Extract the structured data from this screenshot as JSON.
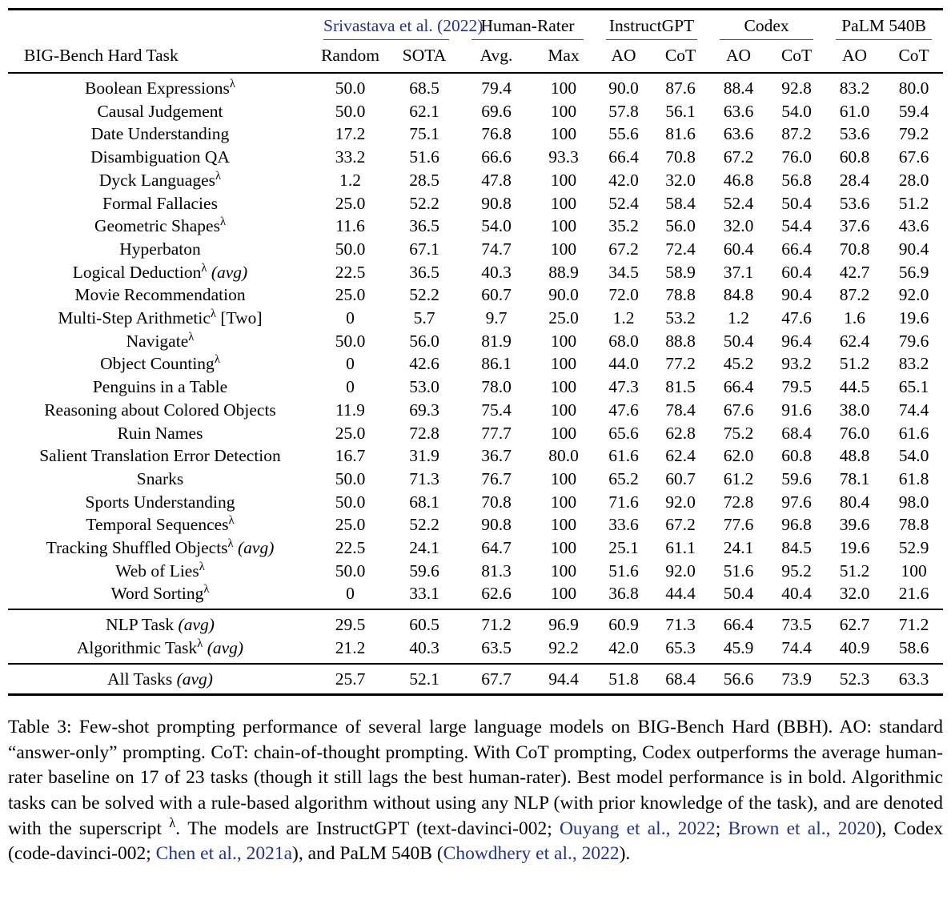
{
  "colors": {
    "link_blue": "#22338c",
    "rule_black": "#000000",
    "cmidrule_gray": "#555555"
  },
  "lambda_symbol": "λ",
  "table": {
    "groups": [
      {
        "label": "Srivastava et al. (2022)",
        "span": 2,
        "link": true
      },
      {
        "label": "Human-Rater",
        "span": 2,
        "link": false
      },
      {
        "label": "InstructGPT",
        "span": 2,
        "link": false
      },
      {
        "label": "Codex",
        "span": 2,
        "link": false
      },
      {
        "label": "PaLM 540B",
        "span": 2,
        "link": false
      }
    ],
    "columns": [
      "BIG-Bench Hard Task",
      "Random",
      "SOTA",
      "Avg.",
      "Max",
      "AO",
      "CoT",
      "AO",
      "CoT",
      "AO",
      "CoT"
    ],
    "rows": [
      {
        "name": "Boolean Expressions",
        "sup": true,
        "note": "",
        "italic": false,
        "values": [
          "50.0",
          "68.5",
          "79.4",
          "100",
          "90.0",
          "87.6",
          "88.4",
          "92.8",
          "83.2",
          "80.0"
        ],
        "bold": 7
      },
      {
        "name": "Causal Judgement",
        "sup": false,
        "note": "",
        "italic": false,
        "values": [
          "50.0",
          "62.1",
          "69.6",
          "100",
          "57.8",
          "56.1",
          "63.6",
          "54.0",
          "61.0",
          "59.4"
        ],
        "bold": 6
      },
      {
        "name": "Date Understanding",
        "sup": false,
        "note": "",
        "italic": false,
        "values": [
          "17.2",
          "75.1",
          "76.8",
          "100",
          "55.6",
          "81.6",
          "63.6",
          "87.2",
          "53.6",
          "79.2"
        ],
        "bold": 7
      },
      {
        "name": "Disambiguation QA",
        "sup": false,
        "note": "",
        "italic": false,
        "values": [
          "33.2",
          "51.6",
          "66.6",
          "93.3",
          "66.4",
          "70.8",
          "67.2",
          "76.0",
          "60.8",
          "67.6"
        ],
        "bold": 7
      },
      {
        "name": "Dyck Languages",
        "sup": true,
        "note": "",
        "italic": false,
        "values": [
          "1.2",
          "28.5",
          "47.8",
          "100",
          "42.0",
          "32.0",
          "46.8",
          "56.8",
          "28.4",
          "28.0"
        ],
        "bold": 7
      },
      {
        "name": "Formal Fallacies",
        "sup": false,
        "note": "",
        "italic": false,
        "values": [
          "25.0",
          "52.2",
          "90.8",
          "100",
          "52.4",
          "58.4",
          "52.4",
          "50.4",
          "53.6",
          "51.2"
        ],
        "bold": 5
      },
      {
        "name": "Geometric Shapes",
        "sup": true,
        "note": "",
        "italic": false,
        "values": [
          "11.6",
          "36.5",
          "54.0",
          "100",
          "35.2",
          "56.0",
          "32.0",
          "54.4",
          "37.6",
          "43.6"
        ],
        "bold": 5
      },
      {
        "name": "Hyperbaton",
        "sup": false,
        "note": "",
        "italic": false,
        "values": [
          "50.0",
          "67.1",
          "74.7",
          "100",
          "67.2",
          "72.4",
          "60.4",
          "66.4",
          "70.8",
          "90.4"
        ],
        "bold": 9
      },
      {
        "name": "Logical Deduction",
        "sup": true,
        "note": "(avg)",
        "italic": true,
        "values": [
          "22.5",
          "36.5",
          "40.3",
          "88.9",
          "34.5",
          "58.9",
          "37.1",
          "60.4",
          "42.7",
          "56.9"
        ],
        "bold": 7
      },
      {
        "name": "Movie Recommendation",
        "sup": false,
        "note": "",
        "italic": false,
        "values": [
          "25.0",
          "52.2",
          "60.7",
          "90.0",
          "72.0",
          "78.8",
          "84.8",
          "90.4",
          "87.2",
          "92.0"
        ],
        "bold": 9
      },
      {
        "name": "Multi-Step Arithmetic",
        "sup": true,
        "note": "[Two]",
        "italic": false,
        "values": [
          "0",
          "5.7",
          "9.7",
          "25.0",
          "1.2",
          "53.2",
          "1.2",
          "47.6",
          "1.6",
          "19.6"
        ],
        "bold": 5
      },
      {
        "name": "Navigate",
        "sup": true,
        "note": "",
        "italic": false,
        "values": [
          "50.0",
          "56.0",
          "81.9",
          "100",
          "68.0",
          "88.8",
          "50.4",
          "96.4",
          "62.4",
          "79.6"
        ],
        "bold": 7
      },
      {
        "name": "Object Counting",
        "sup": true,
        "note": "",
        "italic": false,
        "values": [
          "0",
          "42.6",
          "86.1",
          "100",
          "44.0",
          "77.2",
          "45.2",
          "93.2",
          "51.2",
          "83.2"
        ],
        "bold": 7
      },
      {
        "name": "Penguins in a Table",
        "sup": false,
        "note": "",
        "italic": false,
        "values": [
          "0",
          "53.0",
          "78.0",
          "100",
          "47.3",
          "81.5",
          "66.4",
          "79.5",
          "44.5",
          "65.1"
        ],
        "bold": 5
      },
      {
        "name": "Reasoning about Colored Objects",
        "sup": false,
        "note": "",
        "italic": false,
        "values": [
          "11.9",
          "69.3",
          "75.4",
          "100",
          "47.6",
          "78.4",
          "67.6",
          "91.6",
          "38.0",
          "74.4"
        ],
        "bold": 7
      },
      {
        "name": "Ruin Names",
        "sup": false,
        "note": "",
        "italic": false,
        "values": [
          "25.0",
          "72.8",
          "77.7",
          "100",
          "65.6",
          "62.8",
          "75.2",
          "68.4",
          "76.0",
          "61.6"
        ],
        "bold": 8
      },
      {
        "name": "Salient Translation Error Detection",
        "sup": false,
        "note": "",
        "italic": false,
        "values": [
          "16.7",
          "31.9",
          "36.7",
          "80.0",
          "61.6",
          "62.4",
          "62.0",
          "60.8",
          "48.8",
          "54.0"
        ],
        "bold": 5
      },
      {
        "name": "Snarks",
        "sup": false,
        "note": "",
        "italic": false,
        "values": [
          "50.0",
          "71.3",
          "76.7",
          "100",
          "65.2",
          "60.7",
          "61.2",
          "59.6",
          "78.1",
          "61.8"
        ],
        "bold": 8
      },
      {
        "name": "Sports Understanding",
        "sup": false,
        "note": "",
        "italic": false,
        "values": [
          "50.0",
          "68.1",
          "70.8",
          "100",
          "71.6",
          "92.0",
          "72.8",
          "97.6",
          "80.4",
          "98.0"
        ],
        "bold": 9
      },
      {
        "name": "Temporal Sequences",
        "sup": true,
        "note": "",
        "italic": false,
        "values": [
          "25.0",
          "52.2",
          "90.8",
          "100",
          "33.6",
          "67.2",
          "77.6",
          "96.8",
          "39.6",
          "78.8"
        ],
        "bold": 7
      },
      {
        "name": "Tracking Shuffled Objects",
        "sup": true,
        "note": "(avg)",
        "italic": true,
        "values": [
          "22.5",
          "24.1",
          "64.7",
          "100",
          "25.1",
          "61.1",
          "24.1",
          "84.5",
          "19.6",
          "52.9"
        ],
        "bold": 7
      },
      {
        "name": "Web of Lies",
        "sup": true,
        "note": "",
        "italic": false,
        "values": [
          "50.0",
          "59.6",
          "81.3",
          "100",
          "51.6",
          "92.0",
          "51.6",
          "95.2",
          "51.2",
          "100"
        ],
        "bold": 9
      },
      {
        "name": "Word Sorting",
        "sup": true,
        "note": "",
        "italic": false,
        "values": [
          "0",
          "33.1",
          "62.6",
          "100",
          "36.8",
          "44.4",
          "50.4",
          "40.4",
          "32.0",
          "21.6"
        ],
        "bold": 6
      }
    ],
    "summary_rows": [
      {
        "name": "NLP Task",
        "sup": false,
        "note": "(avg)",
        "italic": true,
        "values": [
          "29.5",
          "60.5",
          "71.2",
          "96.9",
          "60.9",
          "71.3",
          "66.4",
          "73.5",
          "62.7",
          "71.2"
        ],
        "bold": 7
      },
      {
        "name": "Algorithmic Task",
        "sup": true,
        "note": "(avg)",
        "italic": true,
        "values": [
          "21.2",
          "40.3",
          "63.5",
          "92.2",
          "42.0",
          "65.3",
          "45.9",
          "74.4",
          "40.9",
          "58.6"
        ],
        "bold": 7
      }
    ],
    "total_rows": [
      {
        "name": "All Tasks",
        "sup": false,
        "note": "(avg)",
        "italic": true,
        "values": [
          "25.7",
          "52.1",
          "67.7",
          "94.4",
          "51.8",
          "68.4",
          "56.6",
          "73.9",
          "52.3",
          "63.3"
        ],
        "bold": 7
      }
    ]
  },
  "caption": {
    "segments": [
      {
        "text": "Table 3: Few-shot prompting performance of several large language models on BIG-Bench Hard (BBH). AO: standard “answer-only” prompting. CoT: chain-of-thought prompting. With CoT prompting, Codex outperforms the average human-rater baseline on 17 of 23 tasks (though it still lags the best human-rater). Best model performance is in bold. Algorithmic tasks can be solved with a rule-based algorithm without using any NLP (with prior knowledge of the task), and are denoted with the superscript "
      },
      {
        "text": "λ",
        "sup": true
      },
      {
        "text": ". The models are InstructGPT (text-davinci-002; "
      },
      {
        "text": "Ouyang et al., 2022",
        "link": true
      },
      {
        "text": "; "
      },
      {
        "text": "Brown et al., 2020",
        "link": true
      },
      {
        "text": "), Codex (code-davinci-002; "
      },
      {
        "text": "Chen et al., 2021a",
        "link": true
      },
      {
        "text": "), and PaLM 540B ("
      },
      {
        "text": "Chowdhery et al., 2022",
        "link": true
      },
      {
        "text": ")."
      }
    ]
  }
}
